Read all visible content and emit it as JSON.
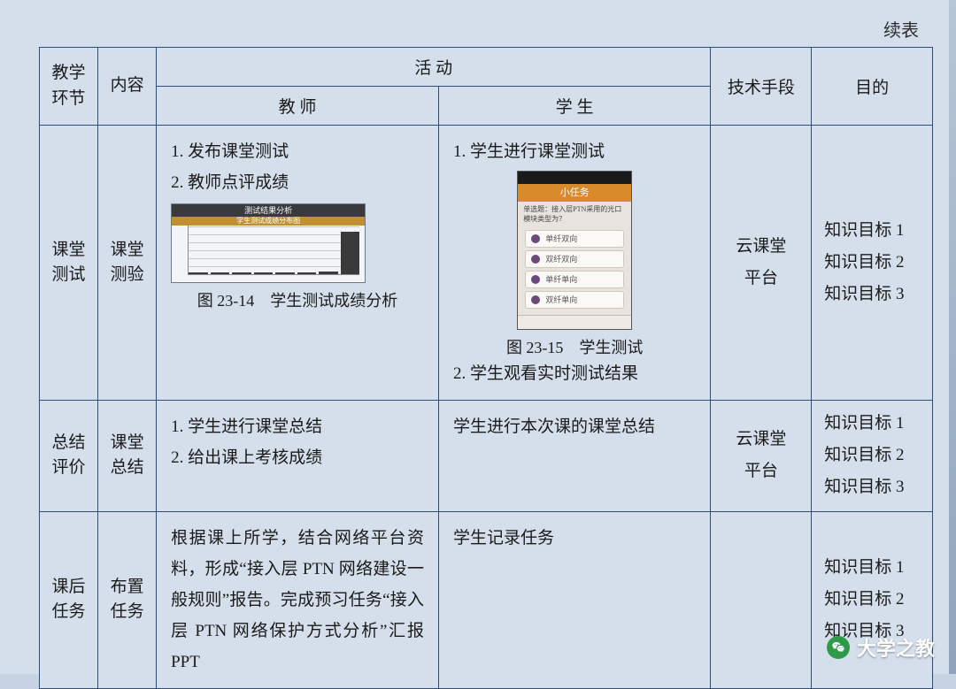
{
  "page": {
    "continued_label": "续表",
    "background_color": "#d4dfeb",
    "border_color": "#2a4d7a"
  },
  "header": {
    "col_phase": "教学环节",
    "col_content": "内容",
    "col_activity": "活 动",
    "col_teacher": "教 师",
    "col_student": "学 生",
    "col_tech": "技术手段",
    "col_goal": "目的"
  },
  "rows": [
    {
      "phase": "课堂测试",
      "content": "课堂测验",
      "teacher": {
        "line1": "1. 发布课堂测试",
        "line2": "2. 教师点评成绩",
        "chart": {
          "type": "bar",
          "title": "测试结果分析",
          "subtitle": "学生测试成绩分布图",
          "values": [
            2,
            2,
            2,
            2,
            2,
            2,
            3,
            52
          ],
          "ylim": [
            0,
            60
          ],
          "ytick_step": 10,
          "bar_color": "#3a3a3a",
          "grid_color": "#c7c7c7",
          "background_color": "#f2f4f7"
        },
        "fig_caption": "图 23-14　学生测试成绩分析"
      },
      "student": {
        "line1": "1. 学生进行课堂测试",
        "phone": {
          "navbar_title": "小任务",
          "navbar_color": "#d98a2b",
          "message": "单选题：接入层PTN采用的光口模块类型为？",
          "options": [
            "单纤双向",
            "双纤双向",
            "单纤单向",
            "双纤单向"
          ],
          "option_dot_color": "#6b4a7a",
          "panel_bg": "#e8e3de"
        },
        "fig_caption": "图 23-15　学生测试",
        "line2": "2. 学生观看实时测试结果"
      },
      "tech": {
        "line1": "云课堂",
        "line2": "平台"
      },
      "goals": [
        "知识目标 1",
        "知识目标 2",
        "知识目标 3"
      ]
    },
    {
      "phase": "总结评价",
      "content": "课堂总结",
      "teacher": {
        "line1": "1. 学生进行课堂总结",
        "line2": "2. 给出课上考核成绩"
      },
      "student": {
        "line1": "学生进行本次课的课堂总结"
      },
      "tech": {
        "line1": "云课堂",
        "line2": "平台"
      },
      "goals": [
        "知识目标 1",
        "知识目标 2",
        "知识目标 3"
      ]
    },
    {
      "phase": "课后任务",
      "content": "布置任务",
      "teacher": {
        "paragraph": "根据课上所学，结合网络平台资料，形成“接入层 PTN 网络建设一般规则”报告。完成预习任务“接入层 PTN 网络保护方式分析”汇报 PPT"
      },
      "student": {
        "line1": "学生记录任务"
      },
      "tech": {
        "line1": "",
        "line2": ""
      },
      "goals": [
        "知识目标 1",
        "知识目标 2",
        "知识目标 3"
      ]
    }
  ],
  "watermark": {
    "text": "大学之教"
  }
}
